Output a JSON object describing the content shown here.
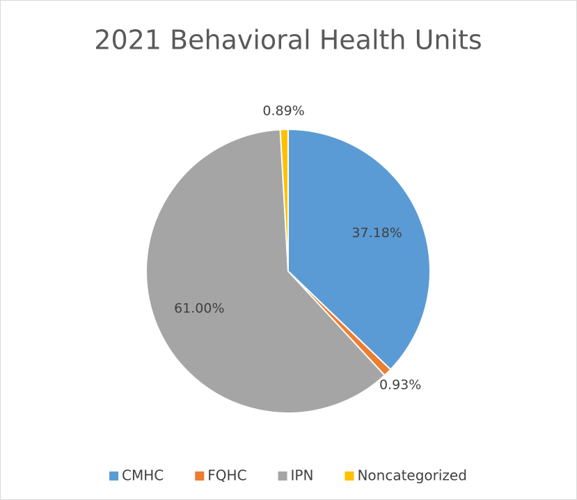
{
  "chart_data": {
    "type": "pie",
    "title": "2021 Behavioral Health Units",
    "categories": [
      "CMHC",
      "FQHC",
      "IPN",
      "Noncategorized"
    ],
    "values": [
      37.18,
      0.93,
      61.0,
      0.89
    ],
    "value_labels": [
      "37.18%",
      "0.93%",
      "61.00%",
      "0.89%"
    ],
    "colors": [
      "#5b9bd5",
      "#ed7d31",
      "#a5a5a5",
      "#ffc000"
    ],
    "legend": "bottom"
  }
}
